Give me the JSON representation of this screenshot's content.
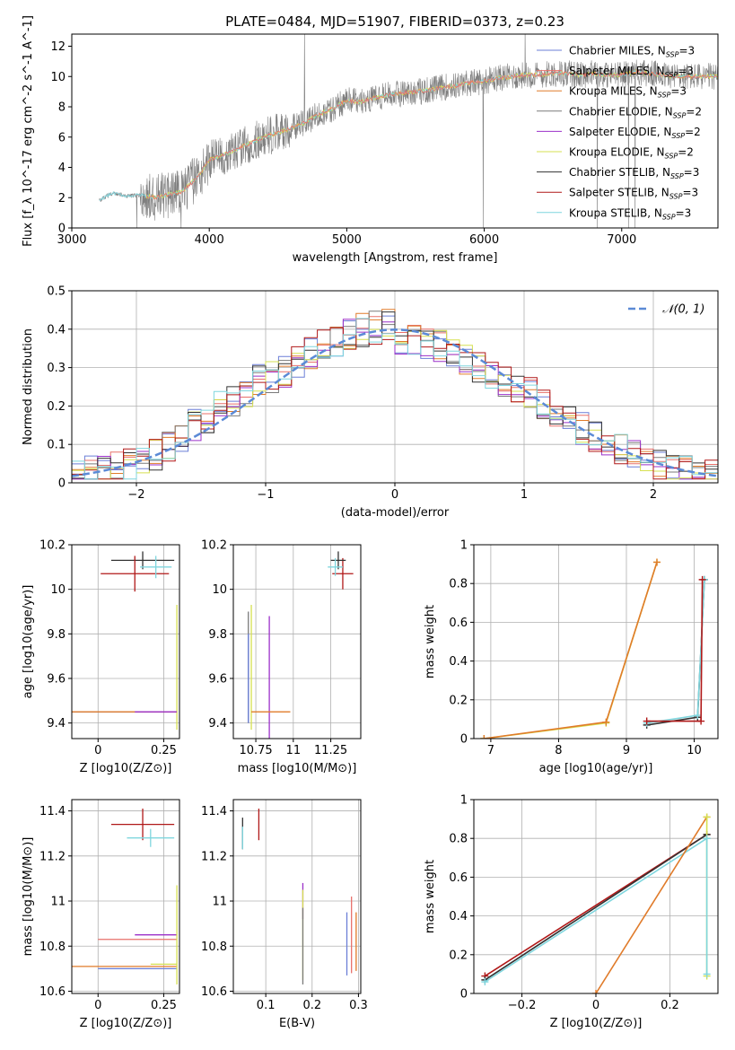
{
  "figure": {
    "title": "PLATE=0484, MJD=51907, FIBERID=0373, z=0.23"
  },
  "legend": [
    {
      "name": "Chabrier MILES, N_SSP=3",
      "color": "#6b7fd7"
    },
    {
      "name": "Salpeter MILES, N_SSP=3",
      "color": "#e8706a"
    },
    {
      "name": "Kroupa MILES, N_SSP=3",
      "color": "#e07b2a"
    },
    {
      "name": "Chabrier ELODIE, N_SSP=2",
      "color": "#7a7a7a"
    },
    {
      "name": "Salpeter ELODIE, N_SSP=2",
      "color": "#9b30c9"
    },
    {
      "name": "Kroupa ELODIE, N_SSP=2",
      "color": "#d6e050"
    },
    {
      "name": "Chabrier STELIB, N_SSP=3",
      "color": "#333333"
    },
    {
      "name": "Salpeter STELIB, N_SSP=3",
      "color": "#b01818"
    },
    {
      "name": "Kroupa STELIB, N_SSP=3",
      "color": "#7fd6de"
    }
  ],
  "chart_data": [
    {
      "id": "spectrum",
      "type": "line",
      "xlabel": "wavelength [Angstrom, rest frame]",
      "ylabel": "Flux [f_λ 10^-17 erg cm^-2 s^-1 A^-1]",
      "xlim": [
        3000,
        7700
      ],
      "ylim": [
        0,
        12.8
      ],
      "xticks": [
        3000,
        4000,
        5000,
        6000,
        7000
      ],
      "yticks": [
        0,
        2,
        4,
        6,
        8,
        10,
        12
      ],
      "grid": false,
      "legend_position": "top-right",
      "continuum": {
        "x": [
          3200,
          3250,
          3300,
          3400,
          3500,
          3600,
          3700,
          3800,
          3900,
          4000,
          4100,
          4200,
          4300,
          4400,
          4500,
          4600,
          4700,
          4800,
          4900,
          5000,
          5100,
          5200,
          5300,
          5400,
          5500,
          5600,
          5700,
          5800,
          5900,
          6000,
          6100,
          6200,
          6300,
          6400,
          6500,
          6600,
          6700,
          6800,
          6900,
          7000,
          7100,
          7200,
          7300,
          7400,
          7500,
          7600,
          7700
        ],
        "y": [
          1.8,
          2.1,
          2.3,
          2.1,
          2.2,
          2.0,
          2.2,
          2.4,
          3.2,
          4.5,
          4.8,
          5.2,
          5.6,
          6.0,
          6.3,
          6.6,
          7.0,
          7.5,
          7.9,
          8.4,
          8.3,
          8.6,
          8.8,
          8.9,
          9.0,
          9.1,
          9.3,
          9.4,
          9.6,
          9.7,
          9.9,
          10.0,
          10.1,
          10.1,
          10.2,
          10.2,
          10.1,
          10.2,
          10.1,
          10.1,
          10.3,
          10.2,
          10.1,
          10.0,
          10.0,
          10.0,
          10.0
        ]
      }
    },
    {
      "id": "residuals",
      "type": "line",
      "xlabel": "(data-model)/error",
      "ylabel": "Normed distribution",
      "xlim": [
        -2.5,
        2.5
      ],
      "ylim": [
        0,
        0.5
      ],
      "xticks": [
        -2,
        -1,
        0,
        1,
        2
      ],
      "yticks": [
        0.0,
        0.1,
        0.2,
        0.3,
        0.4,
        0.5
      ],
      "grid": true,
      "legend_position": "top-right",
      "reference_curve": {
        "name": "N(0,1)",
        "label": "𝒩(0, 1)",
        "mean": 0,
        "sigma": 1,
        "color": "#5b8ad6"
      }
    },
    {
      "id": "age-vs-Z",
      "type": "scatter",
      "xlabel": "Z [log10(Z/Z⊙)]",
      "ylabel": "age [log10(age/yr)]",
      "xlim": [
        -0.1,
        0.31
      ],
      "ylim": [
        9.33,
        10.2
      ],
      "xticks": [
        0.0,
        0.25
      ],
      "yticks": [
        9.4,
        9.6,
        9.8,
        10.0,
        10.2
      ],
      "grid": true,
      "points": [
        {
          "series": "Chabrier STELIB, N_SSP=3",
          "x": 0.17,
          "y": 10.13,
          "xerr": 0.12,
          "yerr": 0.04
        },
        {
          "series": "Salpeter STELIB, N_SSP=3",
          "x": 0.14,
          "y": 10.07,
          "xerr": 0.13,
          "yerr": 0.08
        },
        {
          "series": "Kroupa STELIB, N_SSP=3",
          "x": 0.22,
          "y": 10.1,
          "xerr": 0.06,
          "yerr": 0.05
        },
        {
          "series": "Chabrier MILES, N_SSP=3",
          "x": 0.1,
          "y": 9.45,
          "xerr": 0.2,
          "yerr": 0.0
        },
        {
          "series": "Kroupa MILES, N_SSP=3",
          "x": 0.1,
          "y": 9.45,
          "xerr": 0.2,
          "yerr": 0.0
        },
        {
          "series": "Kroupa ELODIE, N_SSP=2",
          "x": 0.3,
          "y": 9.65,
          "xerr": 0.0,
          "yerr": 0.28
        },
        {
          "series": "Salpeter ELODIE, N_SSP=2",
          "x": 0.22,
          "y": 9.45,
          "xerr": 0.08,
          "yerr": 0.0
        }
      ]
    },
    {
      "id": "age-vs-mass",
      "type": "scatter",
      "xlabel": "mass [log10(M/M⊙)]",
      "ylabel": "",
      "xlim": [
        10.6,
        11.45
      ],
      "ylim": [
        9.33,
        10.2
      ],
      "xticks": [
        10.75,
        11.0,
        11.25
      ],
      "yticks": [
        9.4,
        9.6,
        9.8,
        10.0,
        10.2
      ],
      "grid": true,
      "points": [
        {
          "series": "Salpeter STELIB, N_SSP=3",
          "x": 11.33,
          "y": 10.07,
          "xerr": 0.07,
          "yerr": 0.07
        },
        {
          "series": "Chabrier STELIB, N_SSP=3",
          "x": 11.3,
          "y": 10.13,
          "xerr": 0.05,
          "yerr": 0.04
        },
        {
          "series": "Kroupa STELIB, N_SSP=3",
          "x": 11.28,
          "y": 10.1,
          "xerr": 0.05,
          "yerr": 0.04
        },
        {
          "series": "Kroupa ELODIE, N_SSP=2",
          "x": 10.72,
          "y": 9.65,
          "xerr": 0.0,
          "yerr": 0.28
        },
        {
          "series": "Chabrier ELODIE, N_SSP=2",
          "x": 10.7,
          "y": 9.65,
          "xerr": 0.0,
          "yerr": 0.25
        },
        {
          "series": "Chabrier MILES, N_SSP=3",
          "x": 10.7,
          "y": 9.6,
          "xerr": 0.0,
          "yerr": 0.2
        },
        {
          "series": "Salpeter ELODIE, N_SSP=2",
          "x": 10.84,
          "y": 9.6,
          "xerr": 0.0,
          "yerr": 0.28
        },
        {
          "series": "Kroupa MILES, N_SSP=3",
          "x": 10.85,
          "y": 9.45,
          "xerr": 0.13,
          "yerr": 0.0
        }
      ]
    },
    {
      "id": "weight-vs-age",
      "type": "line",
      "xlabel": "age [log10(age/yr)]",
      "ylabel": "mass weight",
      "xlim": [
        6.75,
        10.35
      ],
      "ylim": [
        0,
        1.0
      ],
      "xticks": [
        7,
        8,
        9,
        10
      ],
      "yticks": [
        0.0,
        0.2,
        0.4,
        0.6,
        0.8,
        1.0
      ],
      "grid": true,
      "series": [
        {
          "name": "Kroupa ELODIE, N_SSP=2",
          "x": [
            6.9,
            8.7,
            9.45
          ],
          "y": [
            0.0,
            0.08,
            0.91
          ]
        },
        {
          "name": "Kroupa MILES, N_SSP=3",
          "x": [
            6.9,
            8.7,
            9.45
          ],
          "y": [
            0.0,
            0.085,
            0.91
          ]
        },
        {
          "name": "Chabrier STELIB, N_SSP=3",
          "x": [
            9.3,
            10.05,
            10.15
          ],
          "y": [
            0.07,
            0.11,
            0.82
          ]
        },
        {
          "name": "Kroupa STELIB, N_SSP=3",
          "x": [
            9.3,
            10.05,
            10.15
          ],
          "y": [
            0.08,
            0.12,
            0.82
          ]
        },
        {
          "name": "Salpeter STELIB, N_SSP=3",
          "x": [
            9.3,
            10.1,
            10.12
          ],
          "y": [
            0.09,
            0.09,
            0.82
          ]
        }
      ]
    },
    {
      "id": "mass-vs-Z",
      "type": "scatter",
      "xlabel": "Z [log10(Z/Z⊙)]",
      "ylabel": "mass [log10(M/M⊙)]",
      "xlim": [
        -0.1,
        0.31
      ],
      "ylim": [
        10.59,
        11.45
      ],
      "xticks": [
        0.0,
        0.25
      ],
      "yticks": [
        10.6,
        10.8,
        11.0,
        11.2,
        11.4
      ],
      "grid": true,
      "points": [
        {
          "series": "Salpeter STELIB, N_SSP=3",
          "x": 0.17,
          "y": 11.34,
          "xerr": 0.12,
          "yerr": 0.07
        },
        {
          "series": "Kroupa STELIB, N_SSP=3",
          "x": 0.2,
          "y": 11.28,
          "xerr": 0.09,
          "yerr": 0.04
        },
        {
          "series": "Salpeter ELODIE, N_SSP=2",
          "x": 0.22,
          "y": 10.85,
          "xerr": 0.08,
          "yerr": 0.0
        },
        {
          "series": "Salpeter MILES, N_SSP=3",
          "x": 0.15,
          "y": 10.83,
          "xerr": 0.15,
          "yerr": 0.0
        },
        {
          "series": "Kroupa ELODIE, N_SSP=2",
          "x": 0.25,
          "y": 10.72,
          "xerr": 0.05,
          "yerr": 0.0
        },
        {
          "series": "Kroupa MILES, N_SSP=3",
          "x": 0.1,
          "y": 10.71,
          "xerr": 0.2,
          "yerr": 0.0
        },
        {
          "series": "Chabrier MILES, N_SSP=3",
          "x": 0.15,
          "y": 10.7,
          "xerr": 0.15,
          "yerr": 0.0
        },
        {
          "series": "Kroupa ELODIE, N_SSP=2",
          "x": 0.3,
          "y": 10.85,
          "xerr": 0.0,
          "yerr": 0.22
        }
      ]
    },
    {
      "id": "mass-vs-EBV",
      "type": "scatter",
      "xlabel": "E(B-V)",
      "ylabel": "",
      "xlim": [
        0.03,
        0.305
      ],
      "ylim": [
        10.59,
        11.45
      ],
      "xticks": [
        0.1,
        0.2,
        0.3
      ],
      "yticks": [
        10.6,
        10.8,
        11.0,
        11.2,
        11.4
      ],
      "grid": true,
      "points": [
        {
          "series": "Chabrier STELIB, N_SSP=3",
          "x": 0.05,
          "y": 11.3,
          "xerr": 0.0,
          "yerr": 0.07
        },
        {
          "series": "Kroupa STELIB, N_SSP=3",
          "x": 0.05,
          "y": 11.28,
          "xerr": 0.0,
          "yerr": 0.05
        },
        {
          "series": "Salpeter STELIB, N_SSP=3",
          "x": 0.085,
          "y": 11.34,
          "xerr": 0.0,
          "yerr": 0.07
        },
        {
          "series": "Salpeter ELODIE, N_SSP=2",
          "x": 0.18,
          "y": 11.0,
          "xerr": 0.0,
          "yerr": 0.08
        },
        {
          "series": "Kroupa ELODIE, N_SSP=2",
          "x": 0.18,
          "y": 10.85,
          "xerr": 0.0,
          "yerr": 0.2
        },
        {
          "series": "Chabrier ELODIE, N_SSP=2",
          "x": 0.18,
          "y": 10.8,
          "xerr": 0.0,
          "yerr": 0.17
        },
        {
          "series": "Chabrier MILES, N_SSP=3",
          "x": 0.275,
          "y": 10.81,
          "xerr": 0.0,
          "yerr": 0.14
        },
        {
          "series": "Salpeter MILES, N_SSP=3",
          "x": 0.285,
          "y": 10.85,
          "xerr": 0.0,
          "yerr": 0.17
        },
        {
          "series": "Kroupa MILES, N_SSP=3",
          "x": 0.295,
          "y": 10.82,
          "xerr": 0.0,
          "yerr": 0.13
        }
      ]
    },
    {
      "id": "weight-vs-Z",
      "type": "line",
      "xlabel": "Z [log10(Z/Z⊙)]",
      "ylabel": "mass weight",
      "xlim": [
        -0.33,
        0.33
      ],
      "ylim": [
        0,
        1.0
      ],
      "xticks": [
        -0.2,
        0.0,
        0.2
      ],
      "yticks": [
        0.0,
        0.2,
        0.4,
        0.6,
        0.8,
        1.0
      ],
      "grid": true,
      "series": [
        {
          "name": "Salpeter STELIB, N_SSP=3",
          "x": [
            -0.3,
            0.3
          ],
          "y": [
            0.09,
            0.82
          ]
        },
        {
          "name": "Chabrier STELIB, N_SSP=3",
          "x": [
            -0.3,
            0.3
          ],
          "y": [
            0.07,
            0.82
          ]
        },
        {
          "name": "Kroupa STELIB, N_SSP=3",
          "x": [
            -0.3,
            0.3
          ],
          "y": [
            0.06,
            0.8
          ]
        },
        {
          "name": "Kroupa MILES, N_SSP=3",
          "x": [
            0.0,
            0.3
          ],
          "y": [
            0.0,
            0.91
          ]
        },
        {
          "name": "Kroupa ELODIE, N_SSP=2",
          "x": [
            0.3,
            0.3
          ],
          "y": [
            0.09,
            0.91
          ]
        },
        {
          "name": "Kroupa STELIB, N_SSP=3",
          "x": [
            0.3,
            0.3
          ],
          "y": [
            0.1,
            0.8
          ]
        }
      ]
    }
  ]
}
